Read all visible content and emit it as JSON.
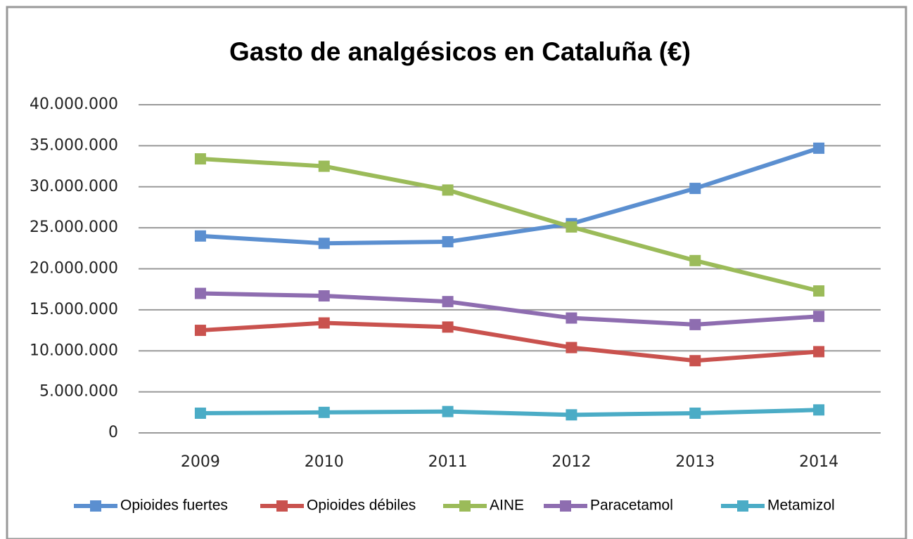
{
  "chart_data": {
    "type": "line",
    "title": "Gasto de analgésicos en Cataluña (€)",
    "categories": [
      "2009",
      "2010",
      "2011",
      "2012",
      "2013",
      "2014"
    ],
    "series": [
      {
        "name": "Opioides fuertes",
        "color": "#5b8fd0",
        "values": [
          24000000,
          23100000,
          23300000,
          25500000,
          29800000,
          34700000
        ]
      },
      {
        "name": "Opioides débiles",
        "color": "#c9524e",
        "values": [
          12500000,
          13400000,
          12900000,
          10400000,
          8800000,
          9900000
        ]
      },
      {
        "name": "AINE",
        "color": "#9bbb59",
        "values": [
          33400000,
          32500000,
          29600000,
          25100000,
          21000000,
          17300000
        ]
      },
      {
        "name": "Paracetamol",
        "color": "#8e6db0",
        "values": [
          17000000,
          16700000,
          16000000,
          14000000,
          13200000,
          14200000
        ]
      },
      {
        "name": "Metamizol",
        "color": "#4bacc6",
        "values": [
          2400000,
          2500000,
          2600000,
          2200000,
          2400000,
          2800000
        ]
      }
    ],
    "ylim": [
      0,
      40000000
    ],
    "yticks": [
      0,
      {
        "value": 5000000,
        "label": "5.000.000"
      },
      {
        "value": 10000000,
        "label": "10.000.000"
      },
      {
        "value": 15000000,
        "label": "15.000.000"
      },
      {
        "value": 20000000,
        "label": "20.000.000"
      },
      {
        "value": 25000000,
        "label": "25.000.000"
      },
      {
        "value": 30000000,
        "label": "30.000.000"
      },
      {
        "value": 35000000,
        "label": "35.000.000"
      },
      {
        "value": 40000000,
        "label": "40.000.000"
      }
    ],
    "grid": true,
    "legend": "bottom"
  }
}
